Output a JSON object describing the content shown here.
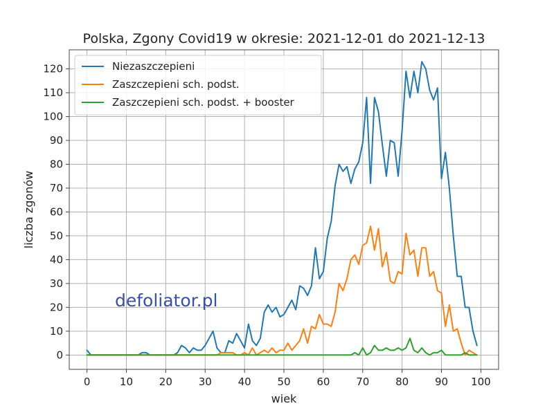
{
  "chart_data": {
    "type": "line",
    "title": "Polska, Zgony Covid19 w okresie: 2021-12-01 do 2021-12-13",
    "xlabel": "wiek",
    "ylabel": "liczba zgonów",
    "xlim": [
      -4.5,
      104.5
    ],
    "ylim": [
      -6,
      128
    ],
    "xticks": [
      0,
      10,
      20,
      30,
      40,
      50,
      60,
      70,
      80,
      90,
      100
    ],
    "yticks": [
      0,
      10,
      20,
      30,
      40,
      50,
      60,
      70,
      80,
      90,
      100,
      110,
      120
    ],
    "grid": true,
    "legend_position": "top-left",
    "watermark": "defoliator.pl",
    "x": [
      0,
      1,
      2,
      3,
      4,
      5,
      6,
      7,
      8,
      9,
      10,
      11,
      12,
      13,
      14,
      15,
      16,
      17,
      18,
      19,
      20,
      21,
      22,
      23,
      24,
      25,
      26,
      27,
      28,
      29,
      30,
      31,
      32,
      33,
      34,
      35,
      36,
      37,
      38,
      39,
      40,
      41,
      42,
      43,
      44,
      45,
      46,
      47,
      48,
      49,
      50,
      51,
      52,
      53,
      54,
      55,
      56,
      57,
      58,
      59,
      60,
      61,
      62,
      63,
      64,
      65,
      66,
      67,
      68,
      69,
      70,
      71,
      72,
      73,
      74,
      75,
      76,
      77,
      78,
      79,
      80,
      81,
      82,
      83,
      84,
      85,
      86,
      87,
      88,
      89,
      90,
      91,
      92,
      93,
      94,
      95,
      96,
      97,
      98,
      99
    ],
    "series": [
      {
        "name": "Niezaszczepieni",
        "color": "#1f77b4",
        "values": [
          2,
          0,
          0,
          0,
          0,
          0,
          0,
          0,
          0,
          0,
          0,
          0,
          0,
          0,
          1,
          1,
          0,
          0,
          0,
          0,
          0,
          0,
          0,
          1,
          4,
          3,
          1,
          3,
          2,
          2,
          4,
          7,
          10,
          3,
          1,
          1,
          6,
          5,
          9,
          6,
          3,
          13,
          6,
          4,
          7,
          18,
          21,
          18,
          20,
          16,
          17,
          20,
          23,
          19,
          29,
          28,
          25,
          29,
          45,
          32,
          35,
          49,
          56,
          71,
          80,
          77,
          79,
          72,
          78,
          81,
          89,
          108,
          72,
          108,
          102,
          88,
          75,
          90,
          89,
          75,
          94,
          119,
          108,
          119,
          110,
          123,
          120,
          111,
          107,
          112,
          74,
          85,
          70,
          50,
          33,
          33,
          20,
          20,
          10,
          4
        ]
      },
      {
        "name": "Zaszczepieni sch. podst.",
        "color": "#ff7f0e",
        "values": [
          0,
          0,
          0,
          0,
          0,
          0,
          0,
          0,
          0,
          0,
          0,
          0,
          0,
          0,
          0,
          0,
          0,
          0,
          0,
          0,
          0,
          0,
          0,
          0,
          0,
          0,
          0,
          0,
          0,
          0,
          0,
          0,
          0,
          0,
          1,
          1,
          1,
          1,
          0,
          0,
          1,
          0,
          3,
          0,
          1,
          2,
          1,
          3,
          1,
          2,
          2,
          5,
          2,
          4,
          6,
          11,
          5,
          12,
          11,
          17,
          13,
          13,
          12,
          18,
          30,
          27,
          32,
          40,
          42,
          38,
          46,
          47,
          54,
          44,
          53,
          37,
          43,
          31,
          30,
          35,
          34,
          51,
          42,
          44,
          33,
          45,
          45,
          33,
          35,
          27,
          26,
          12,
          21,
          10,
          11,
          5,
          0,
          2,
          1,
          0
        ]
      },
      {
        "name": "Zaszczepieni sch. podst. + booster",
        "color": "#2ca02c",
        "values": [
          0,
          0,
          0,
          0,
          0,
          0,
          0,
          0,
          0,
          0,
          0,
          0,
          0,
          0,
          0,
          0,
          0,
          0,
          0,
          0,
          0,
          0,
          0,
          0,
          0,
          0,
          0,
          0,
          0,
          0,
          0,
          0,
          0,
          0,
          0,
          0,
          0,
          0,
          0,
          0,
          0,
          0,
          0,
          0,
          0,
          0,
          0,
          0,
          0,
          0,
          0,
          0,
          0,
          0,
          0,
          0,
          0,
          0,
          0,
          0,
          0,
          0,
          0,
          0,
          0,
          0,
          0,
          0,
          1,
          0,
          3,
          0,
          1,
          4,
          2,
          2,
          3,
          2,
          2,
          3,
          2,
          3,
          7,
          2,
          1,
          3,
          1,
          0,
          1,
          1,
          2,
          0,
          0,
          0,
          0,
          0,
          1,
          0,
          0,
          0
        ]
      }
    ]
  }
}
